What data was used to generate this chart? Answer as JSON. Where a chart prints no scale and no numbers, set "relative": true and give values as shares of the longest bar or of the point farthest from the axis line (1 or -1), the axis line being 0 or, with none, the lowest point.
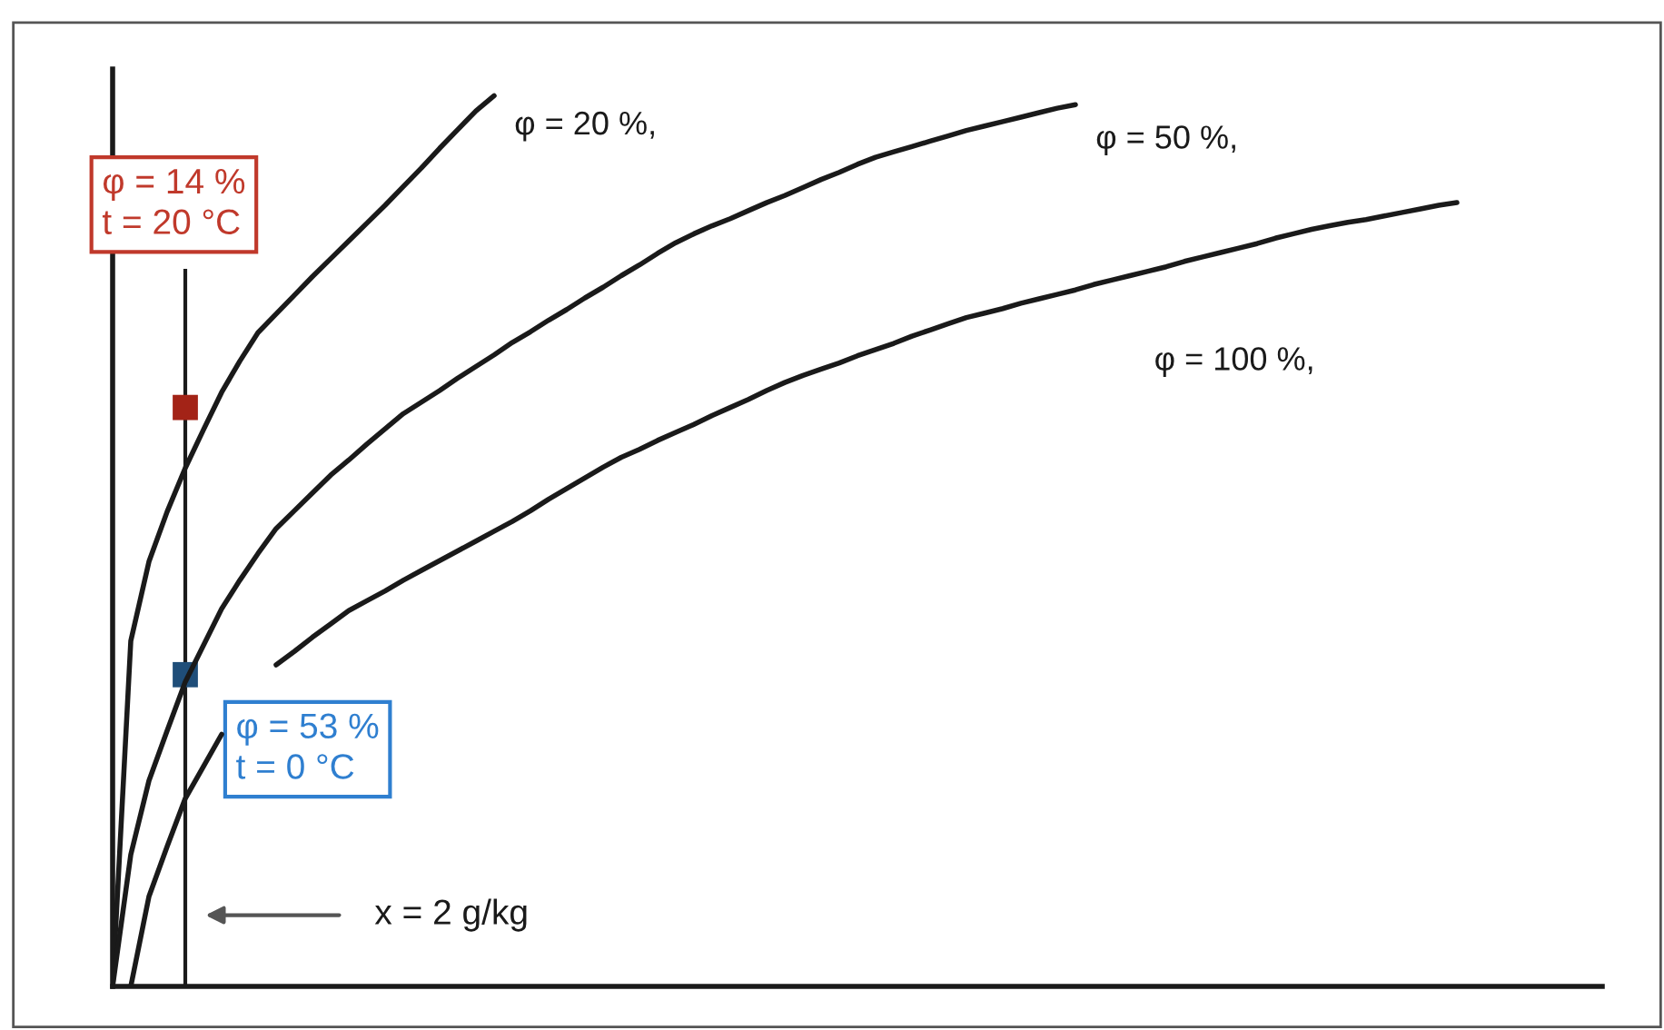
{
  "chart_data": {
    "type": "line",
    "relative": true,
    "legend": false,
    "categories": [
      null,
      null,
      null,
      null,
      null,
      null,
      null,
      null,
      null,
      null,
      null,
      null,
      null,
      null,
      null,
      null,
      null,
      null,
      null,
      null,
      null,
      null,
      null,
      null,
      null,
      null,
      null,
      null,
      null,
      null,
      null,
      null,
      null,
      null,
      null,
      null,
      null,
      null,
      null,
      null,
      null,
      null,
      null,
      null,
      null,
      null,
      null,
      null,
      null,
      null,
      null,
      null,
      null,
      null,
      null,
      null,
      null,
      null,
      null,
      null,
      null,
      null,
      null,
      null,
      null,
      null,
      null,
      null,
      null,
      null,
      null,
      null,
      null,
      null,
      null,
      null,
      null,
      null,
      null,
      null,
      null,
      null,
      null
    ],
    "series": [
      {
        "name": "φ = 20 %,",
        "color": "#1a1a1a",
        "values": [
          0,
          0.388,
          0.477,
          0.533,
          0.582,
          0.625,
          0.667,
          0.702,
          0.734,
          0.755,
          0.776,
          0.797,
          0.817,
          0.837,
          0.857,
          0.877,
          0.898,
          0.919,
          0.941,
          0.962,
          0.983,
          1.0,
          null,
          null,
          null,
          null,
          null,
          null,
          null,
          null,
          null,
          null,
          null,
          null,
          null,
          null,
          null,
          null,
          null,
          null,
          null,
          null,
          null,
          null,
          null,
          null,
          null,
          null,
          null,
          null,
          null,
          null,
          null,
          null,
          null,
          null,
          null,
          null,
          null,
          null,
          null,
          null,
          null,
          null,
          null,
          null,
          null,
          null,
          null,
          null,
          null,
          null,
          null,
          null,
          null,
          null,
          null,
          null,
          null,
          null,
          null,
          null,
          null
        ]
      },
      {
        "name": "φ = 50 %,",
        "color": "#1a1a1a",
        "values": [
          0,
          0.148,
          0.231,
          0.287,
          0.342,
          0.383,
          0.424,
          0.456,
          0.486,
          0.514,
          0.534,
          0.554,
          0.574,
          0.591,
          0.609,
          0.626,
          0.643,
          0.656,
          0.669,
          0.683,
          0.696,
          0.709,
          0.723,
          0.735,
          0.748,
          0.76,
          0.773,
          0.785,
          0.798,
          0.81,
          0.823,
          0.835,
          0.845,
          0.854,
          0.862,
          0.871,
          0.88,
          0.888,
          0.897,
          0.906,
          0.914,
          0.923,
          0.931,
          0.937,
          0.943,
          0.949,
          0.955,
          0.961,
          0.966,
          0.971,
          0.976,
          0.981,
          0.986,
          0.99,
          null,
          null,
          null,
          null,
          null,
          null,
          null,
          null,
          null,
          null,
          null,
          null,
          null,
          null,
          null,
          null,
          null,
          null,
          null,
          null,
          null,
          null,
          null,
          null,
          null,
          null,
          null,
          null,
          null
        ]
      },
      {
        "name": "φ = 100 %,",
        "color": "#1a1a1a",
        "values": [
          null,
          0,
          0.101,
          0.157,
          0.211,
          0.247,
          0.283,
          null,
          null,
          0.361,
          0.376,
          0.392,
          0.407,
          0.422,
          0.433,
          0.444,
          0.456,
          0.467,
          0.478,
          0.489,
          0.5,
          0.511,
          0.522,
          0.534,
          0.547,
          0.559,
          0.571,
          0.583,
          0.594,
          0.603,
          0.613,
          0.622,
          0.631,
          0.641,
          0.65,
          0.659,
          0.669,
          0.678,
          0.686,
          0.693,
          0.7,
          0.708,
          0.715,
          0.722,
          0.73,
          0.737,
          0.744,
          0.751,
          0.756,
          0.761,
          0.767,
          0.772,
          0.777,
          0.782,
          0.788,
          0.793,
          0.798,
          0.803,
          0.808,
          0.814,
          0.819,
          0.824,
          0.829,
          0.834,
          0.84,
          0.845,
          0.85,
          0.854,
          0.858,
          0.861,
          0.865,
          0.869,
          0.873,
          0.877,
          0.88,
          null,
          null,
          null,
          null,
          null,
          null,
          null,
          null
        ]
      }
    ],
    "annotations": [
      "φ = 14 %\nt = 20 °C",
      "φ = 53 %\nt = 0 °C",
      "x = 2 g/kg"
    ]
  }
}
